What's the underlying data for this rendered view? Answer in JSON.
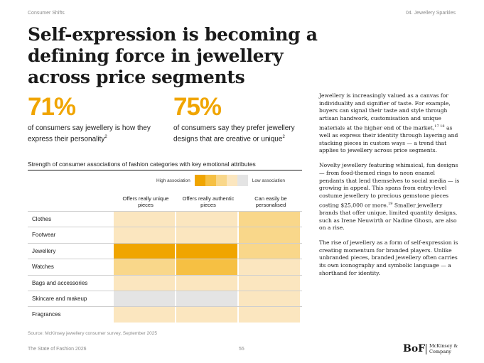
{
  "header": {
    "section": "Consumer Shifts",
    "chapter": "04. Jewellery Sparkles"
  },
  "title": "Self-expression is becoming a defining force in jewellery across price segments",
  "stats": [
    {
      "value": "71%",
      "text": "of consumers say jewellery is how they express their personality",
      "ref": "2"
    },
    {
      "value": "75%",
      "text": "of consumers say they prefer jewellery designs that are creative or unique",
      "ref": "2"
    }
  ],
  "chart": {
    "title": "Strength of consumer associations of fashion categories with key emotional attributes",
    "legend": {
      "high_label": "High association",
      "low_label": "Low association",
      "swatches": [
        "#f0a500",
        "#f6c043",
        "#f9d78a",
        "#fbe6bf",
        "#e4e4e4"
      ]
    },
    "columns": [
      "Offers really unique pieces",
      "Offers really authentic pieces",
      "Can easily be personalised"
    ],
    "source": "Source: McKinsey jewellery consumer survey, September 2025"
  },
  "chart_data": {
    "type": "heatmap",
    "title": "Strength of consumer associations of fashion categories with key emotional attributes",
    "x": [
      "Offers really unique pieces",
      "Offers really authentic pieces",
      "Can easily be personalised"
    ],
    "y": [
      "Clothes",
      "Footwear",
      "Jewellery",
      "Watches",
      "Bags and accessories",
      "Skincare and makeup",
      "Fragrances"
    ],
    "scale": "1 = low association, 5 = high association",
    "levels": [
      [
        2,
        2,
        3
      ],
      [
        2,
        2,
        3
      ],
      [
        5,
        5,
        3
      ],
      [
        3,
        4,
        2
      ],
      [
        2,
        2,
        2
      ],
      [
        1,
        1,
        2
      ],
      [
        2,
        2,
        2
      ]
    ]
  },
  "body": {
    "p1_a": "Jewellery is increasingly valued as a canvas for individuality and signifier of taste. For example, buyers can signal their taste and style through artisan handwork, customisation and unique materials at the higher end of the market,",
    "p1_ref": "17 18",
    "p1_b": " as well as express their identity through layering and stacking pieces in custom ways — a trend that applies to jewellery across price segments.",
    "p2_a": "Novelty jewellery featuring whimsical, fun designs — from food-themed rings to neon enamel pendants that lend themselves to social media — is growing in appeal. This spans from entry-level costume jewellery to precious gemstone pieces costing $25,000 or more.",
    "p2_ref": "19",
    "p2_b": " Smaller jewellery brands that offer unique, limited quantity designs, such as Irene Neuwirth or Nadine Ghosn, are also on a rise.",
    "p3": "The rise of jewellery as a form of self-expression is creating momentum for branded players. Unlike unbranded pieces, branded jewellery often carries its own iconography and symbolic language — a shorthand for identity."
  },
  "footer": {
    "publication": "The State of Fashion 2026",
    "page": "55",
    "logo_bof": "BoF",
    "logo_mckinsey": "McKinsey & Company"
  }
}
